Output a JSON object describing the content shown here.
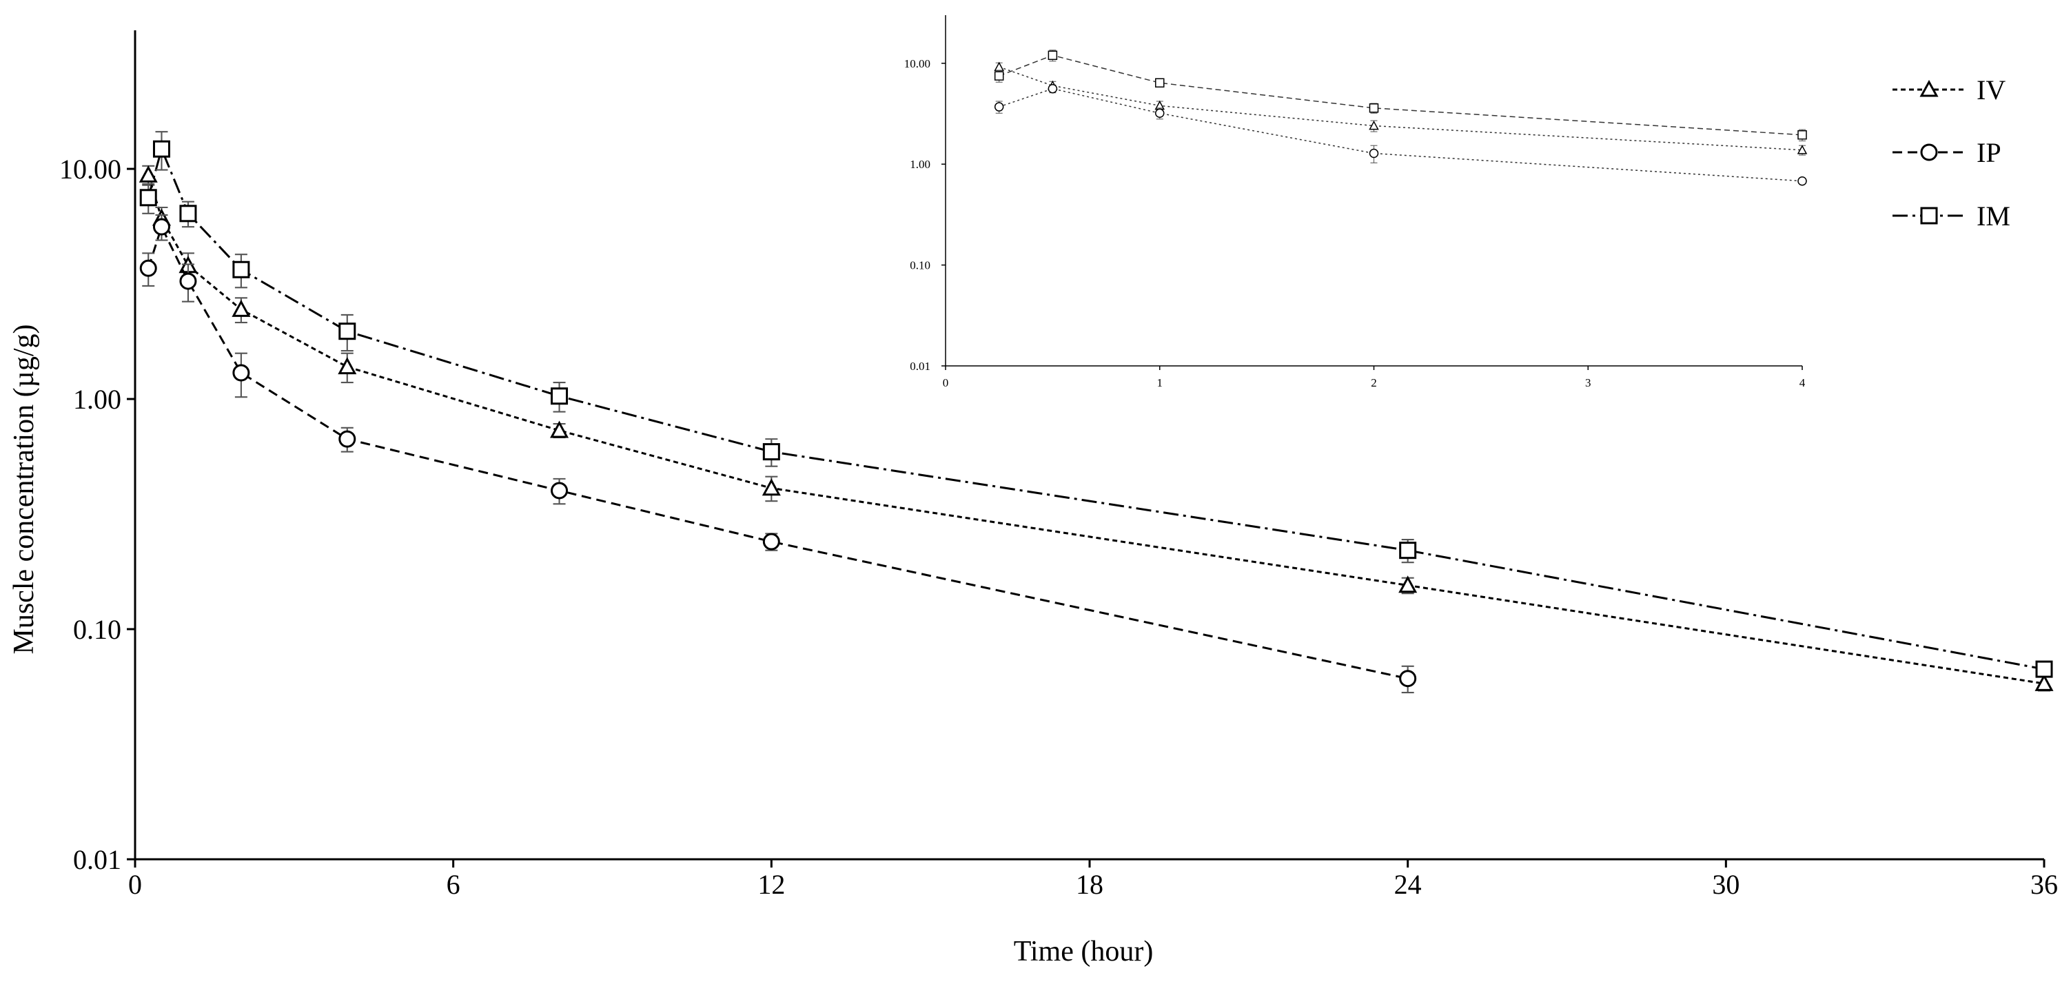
{
  "chart_data": [
    {
      "id": "main",
      "type": "line",
      "title": "",
      "xlabel": "Time (hour)",
      "ylabel": "Muscle concentration (µg/g)",
      "yscale": "log",
      "xlim": [
        0,
        36
      ],
      "ylim": [
        0.01,
        40
      ],
      "xticks": [
        0,
        6,
        12,
        18,
        24,
        30,
        36
      ],
      "xtick_labels": [
        "0",
        "6",
        "12",
        "18",
        "24",
        "30",
        "36"
      ],
      "yticks": [
        0.01,
        0.1,
        1,
        10
      ],
      "ytick_labels": [
        "0.01",
        "0.10",
        "1.00",
        "10.00"
      ],
      "series": [
        {
          "name": "IV",
          "marker": "triangle",
          "dash": "dotted-dash",
          "x": [
            0.25,
            0.5,
            1,
            2,
            4,
            8,
            12,
            24,
            36
          ],
          "y": [
            9.4,
            6.1,
            3.8,
            2.45,
            1.38,
            0.73,
            0.41,
            0.155,
            0.058
          ],
          "err": [
            0.9,
            0.7,
            0.5,
            0.3,
            0.2,
            0.05,
            0.05,
            0.012,
            0.004
          ]
        },
        {
          "name": "IP",
          "marker": "circle",
          "dash": "dashed",
          "x": [
            0.25,
            0.5,
            1,
            2,
            4,
            8,
            12,
            24
          ],
          "y": [
            3.7,
            5.6,
            3.25,
            1.3,
            0.67,
            0.4,
            0.24,
            0.061
          ],
          "err": [
            0.6,
            0.7,
            0.6,
            0.28,
            0.08,
            0.05,
            0.02,
            0.008
          ]
        },
        {
          "name": "IM",
          "marker": "square",
          "dash": "dash-dot",
          "x": [
            0.25,
            0.5,
            1,
            2,
            4,
            8,
            12,
            24,
            36
          ],
          "y": [
            7.5,
            12.2,
            6.4,
            3.65,
            1.97,
            1.03,
            0.59,
            0.22,
            0.067
          ],
          "err": [
            1.1,
            2.3,
            0.8,
            0.6,
            0.35,
            0.15,
            0.08,
            0.025,
            0.005
          ]
        }
      ],
      "legend": "top-right"
    },
    {
      "id": "inset",
      "type": "line",
      "title": "",
      "xlabel": "",
      "ylabel": "",
      "yscale": "log",
      "xlim": [
        0,
        4
      ],
      "ylim": [
        0.01,
        30
      ],
      "xticks": [
        0,
        1,
        2,
        3,
        4
      ],
      "xtick_labels": [
        "0",
        "1",
        "2",
        "3",
        "4"
      ],
      "yticks": [
        0.01,
        0.1,
        1,
        10
      ],
      "ytick_labels": [
        "0.01",
        "0.10",
        "1.00",
        "10.00"
      ],
      "series": [
        {
          "name": "IV",
          "marker": "triangle",
          "dash": "dotted",
          "x": [
            0.25,
            0.5,
            1,
            2,
            4
          ],
          "y": [
            9.2,
            6.0,
            3.8,
            2.4,
            1.38
          ],
          "err": [
            0.9,
            0.6,
            0.4,
            0.3,
            0.15
          ]
        },
        {
          "name": "IP",
          "marker": "circle",
          "dash": "dotted",
          "x": [
            0.25,
            0.5,
            1,
            2,
            4
          ],
          "y": [
            3.7,
            5.6,
            3.2,
            1.28,
            0.68
          ],
          "err": [
            0.5,
            0.5,
            0.4,
            0.25,
            0.04
          ]
        },
        {
          "name": "IM",
          "marker": "square",
          "dash": "dashed",
          "x": [
            0.25,
            0.5,
            1,
            2,
            4
          ],
          "y": [
            7.5,
            12.0,
            6.4,
            3.6,
            1.95
          ],
          "err": [
            1.0,
            1.5,
            0.5,
            0.4,
            0.25
          ]
        }
      ]
    }
  ],
  "legend": {
    "items": [
      {
        "label": "IV",
        "marker": "triangle"
      },
      {
        "label": "IP",
        "marker": "circle"
      },
      {
        "label": "IM",
        "marker": "square"
      }
    ]
  }
}
